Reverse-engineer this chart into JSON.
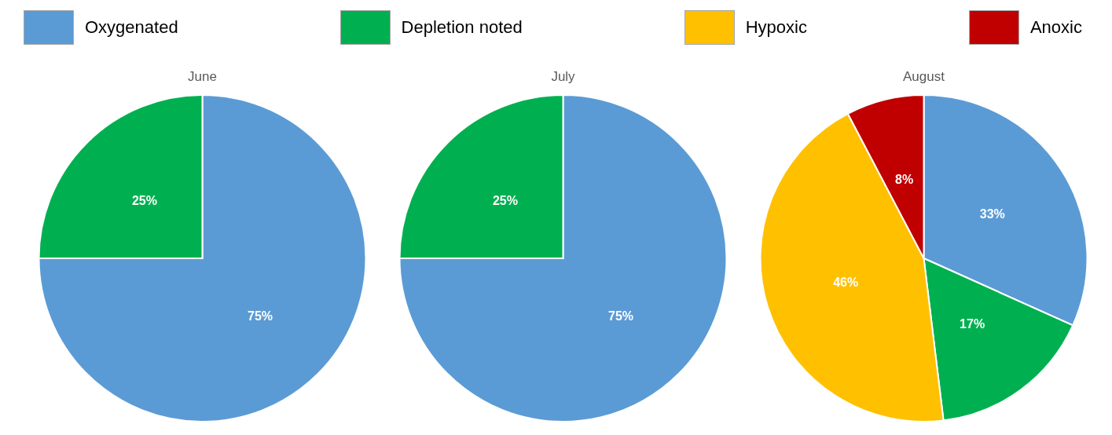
{
  "chart_data": [
    {
      "type": "pie",
      "title": "June",
      "categories": [
        "Oxygenated",
        "Depletion noted",
        "Hypoxic",
        "Anoxic"
      ],
      "values": [
        75,
        25,
        0,
        0
      ],
      "colors": [
        "#5b9bd5",
        "#00b050",
        "#ffc000",
        "#c00000"
      ],
      "value_labels": [
        "75%",
        "25%",
        null,
        null
      ],
      "legend": "top"
    },
    {
      "type": "pie",
      "title": "July",
      "categories": [
        null,
        null
      ],
      "values": [
        75,
        25
      ],
      "colors": [
        "#5b9bd5",
        "#00b050"
      ],
      "value_labels": [
        "75%",
        "25%"
      ]
    },
    {
      "type": "pie",
      "title": "August",
      "categories": [
        null,
        null,
        null,
        null
      ],
      "values": [
        33,
        17,
        46,
        8
      ],
      "colors": [
        "#5b9bd5",
        "#00b050",
        "#ffc000",
        "#c00000"
      ],
      "value_labels": [
        "33%",
        "17%",
        "46%",
        "8%"
      ]
    }
  ]
}
